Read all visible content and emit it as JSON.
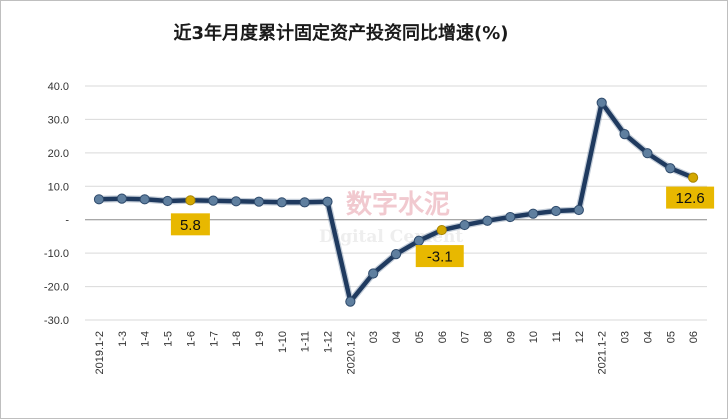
{
  "chart_data": {
    "type": "line",
    "title": "近3年月度累计固定资产投资同比增速(%)",
    "xlabel": "",
    "ylabel": "",
    "ylim": [
      -30,
      40
    ],
    "yticks": [
      "40.0",
      "30.0",
      "20.0",
      "10.0",
      "-",
      "-10.0",
      "-20.0",
      "-30.0"
    ],
    "categories": [
      "2019.1-2",
      "1-3",
      "1-4",
      "1-5",
      "1-6",
      "1-7",
      "1-8",
      "1-9",
      "1-10",
      "1-11",
      "1-12",
      "2020.1-2",
      "03",
      "04",
      "05",
      "06",
      "07",
      "08",
      "09",
      "10",
      "11",
      "12",
      "2021.1-2",
      "03",
      "04",
      "05",
      "06"
    ],
    "series": [
      {
        "values": [
          6.1,
          6.3,
          6.1,
          5.6,
          5.8,
          5.7,
          5.5,
          5.4,
          5.2,
          5.2,
          5.4,
          -24.5,
          -16.1,
          -10.3,
          -6.3,
          -3.1,
          -1.6,
          -0.3,
          0.8,
          1.8,
          2.6,
          2.9,
          35.0,
          25.6,
          19.9,
          15.4,
          12.6
        ],
        "color": "#1f3a5f",
        "marker_color": "#5f7f9f"
      }
    ],
    "highlighted_points": [
      4,
      15,
      26
    ],
    "highlight_color": "#d4a800",
    "data_labels": [
      {
        "index": 4,
        "text": "5.8"
      },
      {
        "index": 15,
        "text": "-3.1"
      },
      {
        "index": 26,
        "text": "12.6"
      }
    ],
    "label_box_color": "#e8b800",
    "grid": true,
    "legend": "none",
    "watermark": {
      "cn": "数字水泥",
      "en": "Digital Cement"
    }
  }
}
